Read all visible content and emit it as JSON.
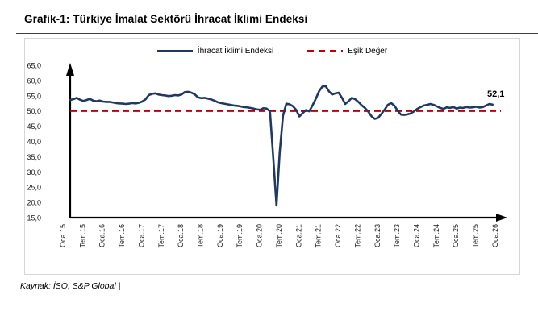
{
  "title": "Grafik-1: Türkiye İmalat Sektörü İhracat İklimi Endeksi",
  "source_note": "Kaynak: İSO, S&P Global |",
  "legend": {
    "series_label": "İhracat İklimi Endeksi",
    "threshold_label": "Eşik Değer"
  },
  "colors": {
    "series": "#1F3864",
    "threshold": "#C00000",
    "axis": "#000000",
    "panel_border": "#D6D6D6"
  },
  "chart_data": {
    "type": "line",
    "title": "Türkiye İmalat Sektörü İhracat İklimi Endeksi",
    "ylim": [
      15,
      65
    ],
    "y_tick_step": 5,
    "y_tick_labels": [
      "65,0",
      "60,0",
      "55,0",
      "50,0",
      "45,0",
      "40,0",
      "35,0",
      "30,0",
      "25,0",
      "20,0",
      "15,0"
    ],
    "x_tick_labels": [
      "Oca.15",
      "Tem.15",
      "Oca.16",
      "Tem.16",
      "Oca.17",
      "Tem.17",
      "Oca.18",
      "Tem.18",
      "Oca.19",
      "Tem.19",
      "Oca.20",
      "Tem.20",
      "Oca.21",
      "Tem.21",
      "Oca.22",
      "Tem.22",
      "Oca.23",
      "Tem.23",
      "Oca.24",
      "Tem.24",
      "Oca.25",
      "Tem.25",
      "Oca.26"
    ],
    "grid": false,
    "legend_position": "top",
    "threshold": {
      "name": "Eşik Değer",
      "value": 50,
      "style": "dashed",
      "color": "#C00000"
    },
    "series": [
      {
        "name": "İhracat İklimi Endeksi",
        "color": "#1F3864",
        "start": "Oca.15",
        "frequency": "monthly",
        "values": [
          53.6,
          53.9,
          54.3,
          53.7,
          53.3,
          53.6,
          54.0,
          53.4,
          53.2,
          53.4,
          53.1,
          53.0,
          53.0,
          52.8,
          52.6,
          52.5,
          52.4,
          52.3,
          52.4,
          52.6,
          52.5,
          52.7,
          53.1,
          53.8,
          55.2,
          55.6,
          55.8,
          55.4,
          55.2,
          55.1,
          54.9,
          55.0,
          55.2,
          55.1,
          55.4,
          56.2,
          56.3,
          56.0,
          55.5,
          54.5,
          54.2,
          54.3,
          54.1,
          53.8,
          53.4,
          52.9,
          52.6,
          52.4,
          52.2,
          52.0,
          51.8,
          51.7,
          51.5,
          51.3,
          51.2,
          51.0,
          50.8,
          50.5,
          50.4,
          50.9,
          50.8,
          49.9,
          35.0,
          19.0,
          36.5,
          48.5,
          52.4,
          52.2,
          51.6,
          50.4,
          48.2,
          49.3,
          50.3,
          49.9,
          51.8,
          54.0,
          56.5,
          58.0,
          58.2,
          56.5,
          55.4,
          55.8,
          56.0,
          54.3,
          52.3,
          53.2,
          54.3,
          53.9,
          53.0,
          51.9,
          51.0,
          49.8,
          48.3,
          47.4,
          47.7,
          49.0,
          50.4,
          52.0,
          52.6,
          51.8,
          50.1,
          48.8,
          48.7,
          48.9,
          49.2,
          49.9,
          50.7,
          51.3,
          51.8,
          52.0,
          52.3,
          52.0,
          51.5,
          51.0,
          50.7,
          51.2,
          51.0,
          51.3,
          50.8,
          51.1,
          51.0,
          51.3,
          51.1,
          51.2,
          51.4,
          51.1,
          51.3,
          51.8,
          52.3,
          52.1
        ]
      }
    ],
    "last_value_label": "52,1"
  }
}
